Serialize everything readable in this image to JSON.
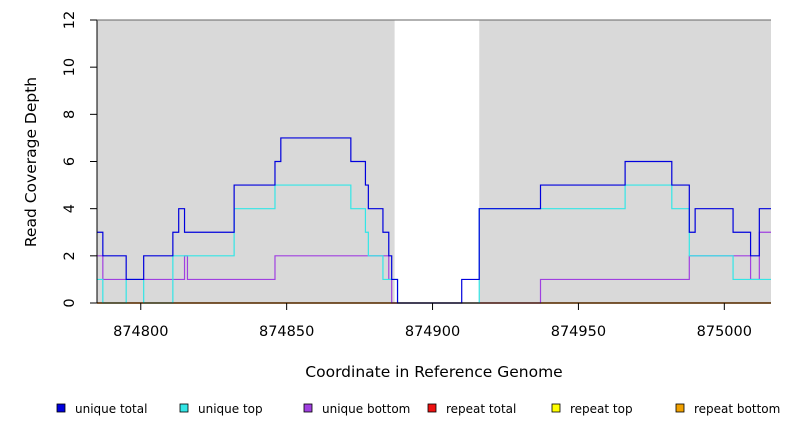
{
  "chart_data": {
    "type": "line",
    "xlabel": "Coordinate in Reference Genome",
    "ylabel": "Read Coverage Depth",
    "xlim": [
      874785,
      875016
    ],
    "ylim": [
      0,
      12
    ],
    "x_ticks": [
      874800,
      874850,
      874900,
      874950,
      875000
    ],
    "y_ticks": [
      0,
      2,
      4,
      6,
      8,
      10,
      12
    ],
    "grid": false,
    "background_color": "#d9d9d9",
    "uncovered_regions": [
      [
        874887,
        874916
      ]
    ],
    "legend_position": "bottom",
    "series": [
      {
        "name": "unique total",
        "color": "#0000dd",
        "points": [
          [
            874785,
            3
          ],
          [
            874787,
            3
          ],
          [
            874787,
            2
          ],
          [
            874795,
            2
          ],
          [
            874795,
            1
          ],
          [
            874801,
            1
          ],
          [
            874801,
            2
          ],
          [
            874811,
            2
          ],
          [
            874811,
            3
          ],
          [
            874813,
            3
          ],
          [
            874813,
            4
          ],
          [
            874815,
            4
          ],
          [
            874815,
            3
          ],
          [
            874832,
            3
          ],
          [
            874832,
            5
          ],
          [
            874846,
            5
          ],
          [
            874846,
            6
          ],
          [
            874848,
            6
          ],
          [
            874848,
            7
          ],
          [
            874872,
            7
          ],
          [
            874872,
            6
          ],
          [
            874877,
            6
          ],
          [
            874877,
            5
          ],
          [
            874878,
            5
          ],
          [
            874878,
            4
          ],
          [
            874883,
            4
          ],
          [
            874883,
            3
          ],
          [
            874885,
            3
          ],
          [
            874885,
            2
          ],
          [
            874886,
            2
          ],
          [
            874886,
            1
          ],
          [
            874888,
            1
          ],
          [
            874888,
            0
          ],
          [
            874910,
            0
          ],
          [
            874910,
            1
          ],
          [
            874916,
            1
          ],
          [
            874916,
            4
          ],
          [
            874937,
            4
          ],
          [
            874937,
            5
          ],
          [
            874966,
            5
          ],
          [
            874966,
            6
          ],
          [
            874982,
            6
          ],
          [
            874982,
            5
          ],
          [
            874988,
            5
          ],
          [
            874988,
            3
          ],
          [
            874990,
            3
          ],
          [
            874990,
            4
          ],
          [
            875003,
            4
          ],
          [
            875003,
            3
          ],
          [
            875009,
            3
          ],
          [
            875009,
            2
          ],
          [
            875012,
            2
          ],
          [
            875012,
            4
          ],
          [
            875016,
            4
          ]
        ]
      },
      {
        "name": "unique top",
        "color": "#33e6e6",
        "points": [
          [
            874785,
            1
          ],
          [
            874787,
            1
          ],
          [
            874787,
            0
          ],
          [
            874795,
            0
          ],
          [
            874795,
            1
          ],
          [
            874801,
            1
          ],
          [
            874801,
            0
          ],
          [
            874811,
            0
          ],
          [
            874811,
            2
          ],
          [
            874832,
            2
          ],
          [
            874832,
            4
          ],
          [
            874846,
            4
          ],
          [
            874846,
            5
          ],
          [
            874872,
            5
          ],
          [
            874872,
            4
          ],
          [
            874877,
            4
          ],
          [
            874877,
            3
          ],
          [
            874878,
            3
          ],
          [
            874878,
            2
          ],
          [
            874883,
            2
          ],
          [
            874883,
            1
          ],
          [
            874888,
            1
          ],
          [
            874888,
            0
          ],
          [
            874916,
            0
          ],
          [
            874916,
            4
          ],
          [
            874966,
            4
          ],
          [
            874966,
            5
          ],
          [
            874982,
            5
          ],
          [
            874982,
            4
          ],
          [
            874988,
            4
          ],
          [
            874988,
            2
          ],
          [
            875003,
            2
          ],
          [
            875003,
            1
          ],
          [
            875016,
            1
          ]
        ]
      },
      {
        "name": "unique bottom",
        "color": "#a040e0",
        "points": [
          [
            874785,
            2
          ],
          [
            874787,
            2
          ],
          [
            874787,
            1
          ],
          [
            874815,
            1
          ],
          [
            874815,
            2
          ],
          [
            874816,
            2
          ],
          [
            874816,
            1
          ],
          [
            874846,
            1
          ],
          [
            874846,
            2
          ],
          [
            874885,
            2
          ],
          [
            874885,
            1
          ],
          [
            874886,
            1
          ],
          [
            874886,
            0
          ],
          [
            874937,
            0
          ],
          [
            874937,
            1
          ],
          [
            874988,
            1
          ],
          [
            874988,
            2
          ],
          [
            875009,
            2
          ],
          [
            875009,
            1
          ],
          [
            875012,
            1
          ],
          [
            875012,
            3
          ],
          [
            875016,
            3
          ]
        ]
      },
      {
        "name": "repeat total",
        "color": "#ee1111",
        "points": [
          [
            874785,
            0
          ],
          [
            875016,
            0
          ]
        ]
      },
      {
        "name": "repeat top",
        "color": "#ffff00",
        "points": [
          [
            874785,
            0
          ],
          [
            875016,
            0
          ]
        ]
      },
      {
        "name": "repeat bottom",
        "color": "#f0a000",
        "points": [
          [
            874785,
            0
          ],
          [
            875016,
            0
          ]
        ]
      }
    ]
  }
}
